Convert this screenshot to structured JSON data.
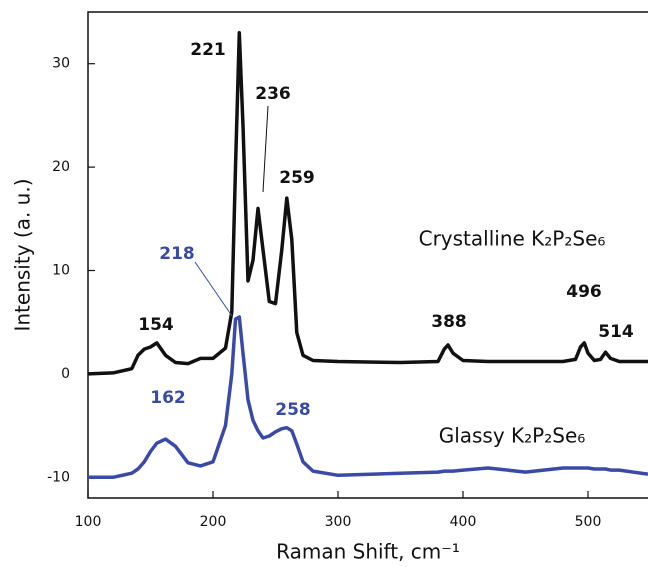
{
  "chart_data": {
    "type": "line",
    "xlabel": "Raman Shift, cm⁻¹",
    "ylabel": "Intensity (a. u.)",
    "x": [
      100,
      120,
      135,
      140,
      145,
      150,
      155,
      162,
      170,
      180,
      190,
      200,
      210,
      215,
      218,
      221,
      224,
      228,
      232,
      236,
      240,
      245,
      250,
      255,
      259,
      263,
      267,
      272,
      280,
      300,
      350,
      380,
      385,
      388,
      392,
      400,
      420,
      450,
      480,
      490,
      494,
      497,
      500,
      505,
      510,
      514,
      518,
      525,
      548
    ],
    "series": [
      {
        "name": "Crystalline K₂P₂Se₆",
        "color": "#111111",
        "values": [
          0,
          0.1,
          0.5,
          1.8,
          2.4,
          2.6,
          3.0,
          1.8,
          1.1,
          1.0,
          1.5,
          1.5,
          2.5,
          6,
          20,
          33,
          24,
          9,
          11,
          16,
          12,
          7,
          6.8,
          12,
          17,
          13,
          4,
          1.8,
          1.3,
          1.2,
          1.1,
          1.2,
          2.4,
          2.8,
          2.0,
          1.3,
          1.2,
          1.2,
          1.2,
          1.4,
          2.6,
          3.0,
          2.0,
          1.3,
          1.4,
          2.1,
          1.5,
          1.2,
          1.2
        ]
      },
      {
        "name": "Glassy K₂P₂Se₆",
        "color": "#3a4aa8",
        "values": [
          -10,
          -10,
          -9.6,
          -9.2,
          -8.5,
          -7.5,
          -6.7,
          -6.3,
          -7,
          -8.6,
          -8.9,
          -8.5,
          -5,
          0,
          5.3,
          5.5,
          2,
          -2.5,
          -4.5,
          -5.5,
          -6.2,
          -6,
          -5.6,
          -5.3,
          -5.2,
          -5.5,
          -6.8,
          -8.5,
          -9.4,
          -9.8,
          -9.6,
          -9.5,
          -9.4,
          -9.4,
          -9.4,
          -9.3,
          -9.1,
          -9.5,
          -9.1,
          -9.1,
          -9.1,
          -9.1,
          -9.1,
          -9.2,
          -9.2,
          -9.2,
          -9.3,
          -9.3,
          -9.7
        ]
      }
    ],
    "annotations": [
      "221",
      "236",
      "259",
      "154",
      "388",
      "496",
      "514",
      "218",
      "162",
      "258"
    ],
    "xlim": [
      100,
      548
    ],
    "xticks": [
      100,
      200,
      300,
      400,
      500
    ],
    "ylim": [
      -12,
      35
    ],
    "yticks": [
      -10,
      0,
      10,
      20,
      30
    ]
  }
}
